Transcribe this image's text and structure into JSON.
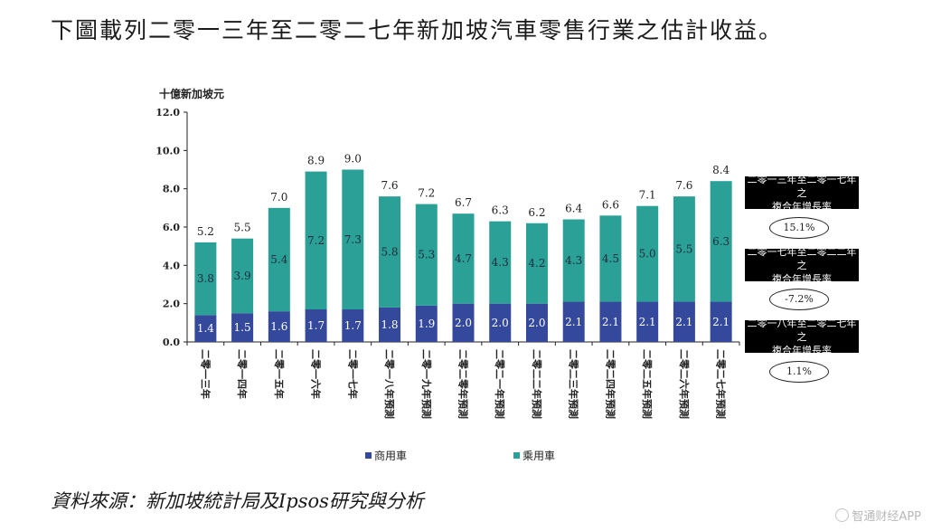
{
  "caption": "下圖載列二零一三年至二零二七年新加坡汽車零售行業之估計收益。",
  "source": "資料來源：新加坡統計局及Ipsos研究與分析",
  "watermark": "智通财经APP",
  "chart_data": {
    "type": "bar",
    "stacked": true,
    "title": "",
    "ylabel": "十億新加坡元",
    "xlabel": "",
    "ylim": [
      0,
      12
    ],
    "yticks": [
      "0.0",
      "2.0",
      "4.0",
      "6.0",
      "8.0",
      "10.0",
      "12.0"
    ],
    "categories": [
      "二零一三年",
      "二零一四年",
      "二零一五年",
      "二零一六年",
      "二零一七年",
      "二零一八年預測",
      "二零一九年預測",
      "二零二零年預測",
      "二零二一年預測",
      "二零二二年預測",
      "二零二三年預測",
      "二零二四年預測",
      "二零二五年預測",
      "二零二六年預測",
      "二零二七年預測"
    ],
    "series": [
      {
        "name": "商用車",
        "color": "#34499b",
        "values": [
          1.4,
          1.5,
          1.6,
          1.7,
          1.7,
          1.8,
          1.9,
          2.0,
          2.0,
          2.0,
          2.1,
          2.1,
          2.1,
          2.1,
          2.1
        ]
      },
      {
        "name": "乘用車",
        "color": "#2aa097",
        "values": [
          3.8,
          3.9,
          5.4,
          7.2,
          7.3,
          5.8,
          5.3,
          4.7,
          4.3,
          4.2,
          4.3,
          4.5,
          5.0,
          5.5,
          6.3
        ]
      }
    ],
    "totals": [
      5.2,
      5.5,
      7.0,
      8.9,
      9.0,
      7.6,
      7.2,
      6.7,
      6.3,
      6.2,
      6.4,
      6.6,
      7.1,
      7.6,
      8.4
    ],
    "legend": [
      "商用車",
      "乘用車"
    ]
  },
  "cagr": [
    {
      "label_line1": "二零一三年至二零一七年之",
      "label_line2": "複合年增長率",
      "value": "15.1%"
    },
    {
      "label_line1": "二零一七年至二零二二年之",
      "label_line2": "複合年增長率",
      "value": "-7.2%"
    },
    {
      "label_line1": "二零一八年至二零二七年之",
      "label_line2": "複合年增長率",
      "value": "1.1%"
    }
  ]
}
